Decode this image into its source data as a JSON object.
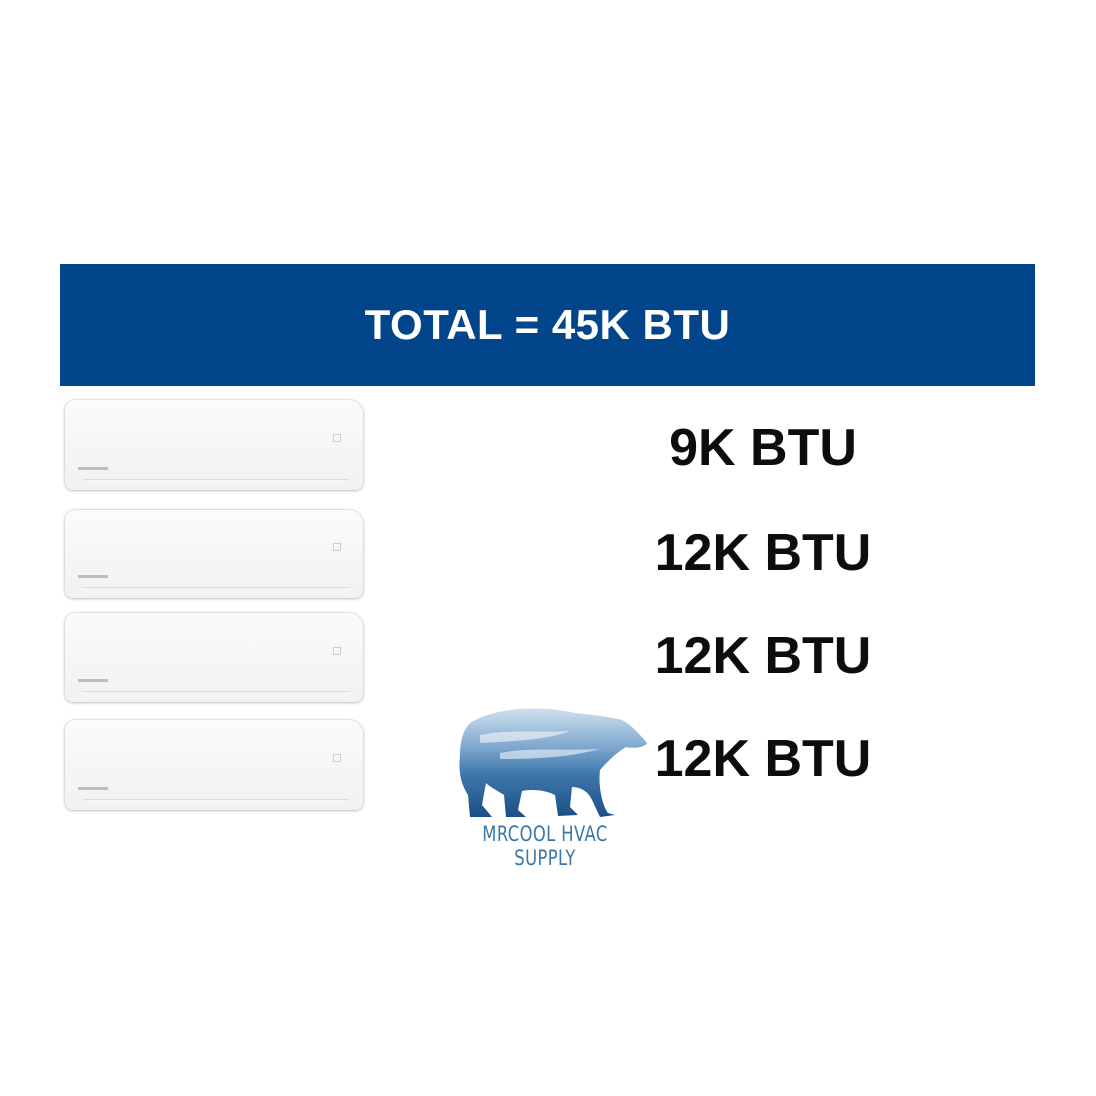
{
  "banner": {
    "title": "TOTAL = 45K BTU",
    "color": "#03458a"
  },
  "units": [
    {
      "capacity": "9K BTU"
    },
    {
      "capacity": "12K BTU"
    },
    {
      "capacity": "12K BTU"
    },
    {
      "capacity": "12K BTU"
    }
  ],
  "logo": {
    "text": "MRCOOL HVAC SUPPLY",
    "icon": "polar-bear-icon",
    "color": "#3c76a6"
  }
}
